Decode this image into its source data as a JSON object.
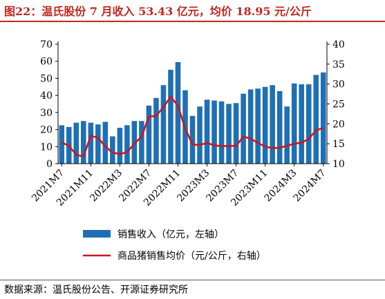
{
  "title": "图22：温氏股份 7 月收入 53.43 亿元，均价 18.95 元/公斤",
  "source": "数据来源：温氏股份公告、开源证券研究所",
  "colors": {
    "bar": "#1f6fb5",
    "line": "#d0141e",
    "title": "#c0271f"
  },
  "chart_data": {
    "type": "bar+line",
    "categories": [
      "2021M7",
      "2021M8",
      "2021M9",
      "2021M10",
      "2021M11",
      "2021M12",
      "2022M1",
      "2022M2",
      "2022M3",
      "2022M4",
      "2022M5",
      "2022M6",
      "2022M7",
      "2022M8",
      "2022M9",
      "2022M10",
      "2022M11",
      "2022M12",
      "2023M1",
      "2023M2",
      "2023M3",
      "2023M4",
      "2023M5",
      "2023M6",
      "2023M7",
      "2023M8",
      "2023M9",
      "2023M10",
      "2023M11",
      "2023M12",
      "2024M1",
      "2024M2",
      "2024M3",
      "2024M4",
      "2024M5",
      "2024M6",
      "2024M7"
    ],
    "x_tick_labels": [
      "2021M7",
      "2021M11",
      "2022M3",
      "2022M7",
      "2022M11",
      "2023M3",
      "2023M7",
      "2023M11",
      "2024M3",
      "2024M7"
    ],
    "series": [
      {
        "name": "销售收入（亿元，左轴）",
        "type": "bar",
        "axis": "left",
        "values": [
          22.5,
          21.5,
          24,
          25,
          24,
          23,
          24.5,
          16,
          21,
          22.5,
          25,
          25,
          34,
          38.5,
          46,
          55,
          59.5,
          43,
          28,
          33.5,
          37.5,
          37,
          36.5,
          35,
          35.5,
          41,
          43.5,
          44,
          45,
          46,
          42.5,
          33.5,
          47,
          46.5,
          46.5,
          52,
          53.43
        ]
      },
      {
        "name": "商品猪销售均价（元/公斤，右轴）",
        "type": "line",
        "axis": "right",
        "values": [
          15.3,
          14.5,
          12.2,
          11.8,
          17,
          16.5,
          14.3,
          12.8,
          12.4,
          12.9,
          15,
          16.8,
          21.8,
          22,
          24.2,
          26.8,
          24.5,
          18.8,
          14.8,
          14.7,
          15.2,
          14.6,
          14.4,
          14.4,
          14.5,
          16.8,
          16.3,
          15.2,
          14.3,
          13.9,
          14,
          14.5,
          15,
          15.3,
          16.2,
          18.4,
          18.95
        ]
      }
    ],
    "y_left": {
      "min": 0,
      "max": 70,
      "ticks": [
        0,
        10,
        20,
        30,
        40,
        50,
        60,
        70
      ]
    },
    "y_right": {
      "min": 10,
      "max": 40,
      "ticks": [
        10,
        15,
        20,
        25,
        30,
        35,
        40
      ]
    },
    "legend": {
      "bar_label": "销售收入（亿元，左轴）",
      "line_label": "商品猪销售均价（元/公斤，右轴）",
      "position": "bottom"
    }
  }
}
